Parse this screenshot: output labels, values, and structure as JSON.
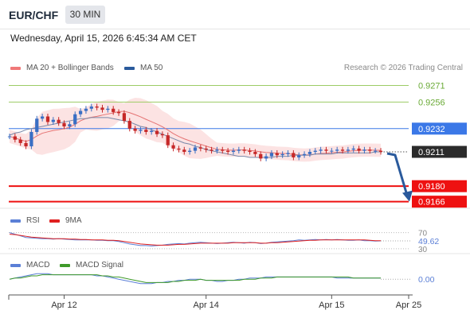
{
  "header": {
    "symbol": "EUR/CHF",
    "timeframe": "30 MIN"
  },
  "timestamp": "Wednesday, April 15, 2026 6:45:34 AM CET",
  "legend": {
    "ma20": {
      "label": "MA 20 + Bollinger Bands",
      "color": "#f07878"
    },
    "ma50": {
      "label": "MA 50",
      "color": "#2a5a9c"
    }
  },
  "credit": "Research © 2026 Trading Central",
  "chart_data": {
    "type": "line",
    "price": {
      "ylim": [
        0.916,
        0.928
      ],
      "levels": [
        {
          "label": "0.9271",
          "value": 0.9271,
          "kind": "resistance",
          "color": "#9ccc65"
        },
        {
          "label": "0.9256",
          "value": 0.9256,
          "kind": "resistance",
          "color": "#9ccc65"
        },
        {
          "label": "0.9232",
          "value": 0.9232,
          "kind": "pivot",
          "color": "#3b78e7"
        },
        {
          "label": "0.9211",
          "value": 0.9211,
          "kind": "last",
          "color": "#2b2b2b"
        },
        {
          "label": "0.9180",
          "value": 0.918,
          "kind": "support",
          "color": "#ee1111"
        },
        {
          "label": "0.9166",
          "value": 0.9166,
          "kind": "support",
          "color": "#ee1111"
        }
      ],
      "close": [
        0.9225,
        0.9222,
        0.9219,
        0.9216,
        0.9229,
        0.9241,
        0.9243,
        0.9238,
        0.924,
        0.9237,
        0.9234,
        0.9236,
        0.9245,
        0.9248,
        0.925,
        0.9252,
        0.9251,
        0.9249,
        0.925,
        0.9247,
        0.9246,
        0.9239,
        0.9232,
        0.923,
        0.9231,
        0.9229,
        0.923,
        0.9227,
        0.9226,
        0.9217,
        0.9214,
        0.9213,
        0.9211,
        0.9212,
        0.9215,
        0.9214,
        0.9213,
        0.9212,
        0.9213,
        0.9212,
        0.9211,
        0.9212,
        0.9213,
        0.9212,
        0.9211,
        0.9209,
        0.9205,
        0.9207,
        0.921,
        0.9208,
        0.9209,
        0.921,
        0.9206,
        0.9208,
        0.9209,
        0.9211,
        0.9212,
        0.9213,
        0.9212,
        0.9212,
        0.9213,
        0.9212,
        0.9213,
        0.9214,
        0.9212,
        0.9213,
        0.9212,
        0.9212,
        0.9211
      ],
      "ma50": [
        0.9226,
        0.9228,
        0.9229,
        0.9231,
        0.9232,
        0.9233,
        0.9234,
        0.9235,
        0.9236,
        0.9237,
        0.9238,
        0.9239,
        0.924,
        0.9241,
        0.9241,
        0.9242,
        0.9242,
        0.9242,
        0.9242,
        0.9241,
        0.924,
        0.9239,
        0.9238,
        0.9236,
        0.9234,
        0.9233,
        0.9231,
        0.9229,
        0.9227,
        0.9225,
        0.9223,
        0.9221,
        0.9219,
        0.9218,
        0.9216,
        0.9215,
        0.9213,
        0.9212,
        0.9211,
        0.921,
        0.9209,
        0.9208,
        0.9207,
        0.9207,
        0.9206,
        0.9206,
        0.9206,
        0.9206,
        0.9206,
        0.9207,
        0.9207,
        0.9207,
        0.9208,
        0.9208,
        0.9208,
        0.9208,
        0.9209,
        0.9209,
        0.9209,
        0.9209,
        0.921,
        0.921,
        0.921,
        0.921,
        0.921,
        0.921,
        0.921,
        0.9211,
        0.9211
      ]
    },
    "rsi": {
      "legend": [
        {
          "label": "RSI",
          "color": "#5b7fd6"
        },
        {
          "label": "9MA",
          "color": "#e02020"
        }
      ],
      "ticks": [
        {
          "label": "70",
          "value": 70
        },
        {
          "label": "30",
          "value": 30
        }
      ],
      "current_label": "49.62",
      "current": 49.62,
      "ylim": [
        20,
        85
      ],
      "rsi": [
        70,
        66,
        62,
        58,
        57,
        56,
        55,
        55,
        54,
        55,
        54,
        53,
        52,
        52,
        52,
        52,
        51,
        51,
        50,
        50,
        48,
        45,
        42,
        40,
        38,
        38,
        37,
        38,
        39,
        41,
        42,
        43,
        42,
        44,
        45,
        46,
        45,
        44,
        43,
        44,
        45,
        46,
        45,
        44,
        46,
        45,
        43,
        44,
        46,
        47,
        48,
        49,
        50,
        52,
        51,
        52,
        53,
        52,
        53,
        52,
        53,
        52,
        51,
        51,
        52,
        50,
        50,
        49,
        49.62
      ],
      "ma": [
        66,
        65,
        63,
        61,
        59,
        58,
        57,
        56,
        55,
        55,
        55,
        54,
        54,
        53,
        53,
        52,
        52,
        52,
        51,
        51,
        50,
        48,
        46,
        44,
        42,
        41,
        40,
        39,
        39,
        39,
        40,
        41,
        41,
        42,
        43,
        44,
        44,
        44,
        44,
        44,
        44,
        45,
        45,
        45,
        45,
        45,
        44,
        44,
        45,
        45,
        46,
        47,
        48,
        49,
        50,
        51,
        51,
        52,
        52,
        52,
        52,
        52,
        52,
        52,
        52,
        52,
        51,
        50,
        50
      ]
    },
    "macd": {
      "legend": [
        {
          "label": "MACD",
          "color": "#5b7fd6"
        },
        {
          "label": "MACD Signal",
          "color": "#3f9a2a"
        }
      ],
      "zero_label": "0.00",
      "ylim": [
        -0.0012,
        0.0008
      ],
      "macd": [
        0.0,
        0.0001,
        0.0002,
        0.0003,
        0.0004,
        0.0005,
        0.0005,
        0.0005,
        0.0004,
        0.0004,
        0.0004,
        0.0004,
        0.0004,
        0.0004,
        0.0004,
        0.0004,
        0.0003,
        0.0003,
        0.0002,
        0.0001,
        0.0,
        -0.0001,
        -0.0002,
        -0.0003,
        -0.0004,
        -0.0004,
        -0.0004,
        -0.0003,
        -0.0003,
        -0.0002,
        -0.0002,
        -0.0001,
        -0.0001,
        0.0,
        0.0,
        0.0,
        -0.0001,
        -0.0001,
        -0.0002,
        -0.0002,
        -0.0001,
        -0.0001,
        0.0,
        0.0,
        0.0001,
        0.0001,
        0.0001,
        0.0002,
        0.0002,
        0.0002,
        0.0002,
        0.0002,
        0.0002,
        0.0002,
        0.0002,
        0.0002,
        0.0002,
        0.0002,
        0.0002,
        0.0002,
        0.0001,
        0.0001,
        0.0001,
        0.0001,
        0.0001,
        0.0001,
        0.0001,
        0.0001,
        0.0001
      ],
      "signal": [
        0.0,
        0.0001,
        0.0001,
        0.0002,
        0.0003,
        0.0003,
        0.0004,
        0.0004,
        0.0004,
        0.0004,
        0.0004,
        0.0004,
        0.0004,
        0.0004,
        0.0004,
        0.0004,
        0.0004,
        0.0003,
        0.0003,
        0.0002,
        0.0002,
        0.0001,
        0.0,
        -0.0001,
        -0.0002,
        -0.0003,
        -0.0003,
        -0.0003,
        -0.0003,
        -0.0003,
        -0.0002,
        -0.0002,
        -0.0001,
        -0.0001,
        -0.0001,
        0.0,
        -0.0001,
        -0.0001,
        -0.0001,
        -0.0001,
        -0.0001,
        -0.0001,
        -0.0001,
        0.0,
        0.0,
        0.0,
        0.0001,
        0.0001,
        0.0001,
        0.0002,
        0.0002,
        0.0002,
        0.0002,
        0.0002,
        0.0002,
        0.0002,
        0.0002,
        0.0002,
        0.0002,
        0.0002,
        0.0002,
        0.0002,
        0.0002,
        0.0001,
        0.0001,
        0.0001,
        0.0001,
        0.0001,
        0.0001
      ]
    },
    "x_ticks": [
      {
        "label": "Apr 12",
        "index": 10
      },
      {
        "label": "Apr 14",
        "index": 36
      },
      {
        "label": "Apr 15",
        "index": 59
      },
      {
        "label": "Apr 25",
        "index": 69
      }
    ],
    "forecast": {
      "direction": "down",
      "target": 0.9166
    }
  }
}
